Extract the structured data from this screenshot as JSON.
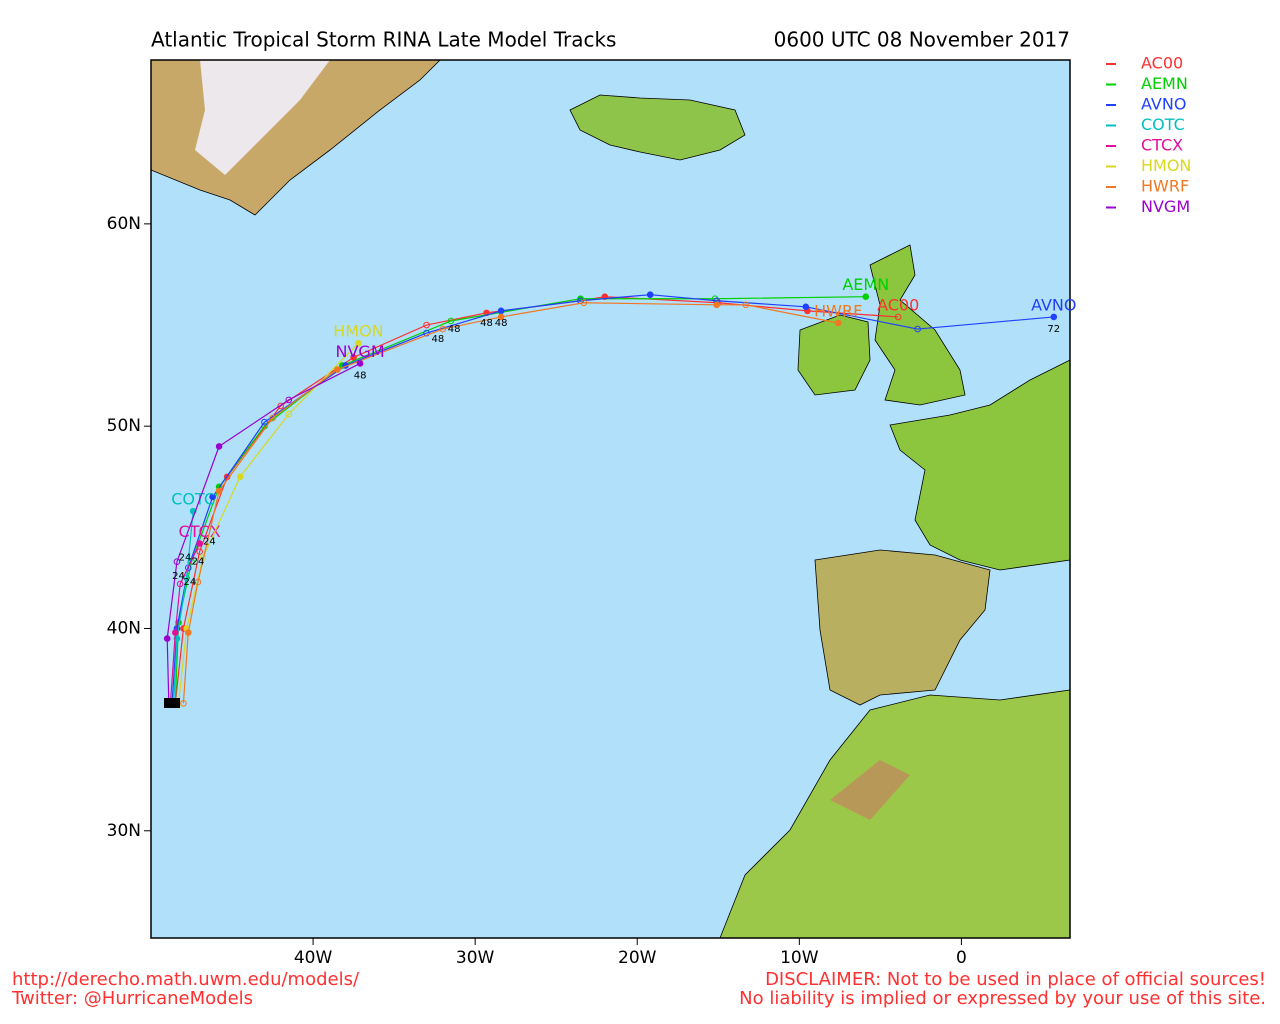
{
  "chart_data": {
    "type": "line",
    "title": "Atlantic Tropical Storm RINA Late Model Tracks",
    "subtitle": "0600 UTC 08 November 2017",
    "xlim": [
      -50,
      6.7
    ],
    "ylim": [
      24.7,
      68.1
    ],
    "xticks": [
      {
        "value": -40,
        "label": "40W"
      },
      {
        "value": -30,
        "label": "30W"
      },
      {
        "value": -20,
        "label": "20W"
      },
      {
        "value": -10,
        "label": "10W"
      },
      {
        "value": 0,
        "label": "0"
      }
    ],
    "yticks": [
      {
        "value": 30,
        "label": "30N"
      },
      {
        "value": 40,
        "label": "40N"
      },
      {
        "value": 50,
        "label": "50N"
      },
      {
        "value": 60,
        "label": "60N"
      }
    ],
    "series": [
      {
        "name": "AC00",
        "color": "#ff3030",
        "x": [
          -48.5,
          -48.0,
          -47.0,
          -45.3,
          -42.0,
          -37.5,
          -33.0,
          -29.3,
          -23.5,
          -22.0,
          -15.0,
          -9.5,
          -3.9
        ],
        "y": [
          36.3,
          40.0,
          43.8,
          47.5,
          51.0,
          53.4,
          55.0,
          55.6,
          56.2,
          56.4,
          56.1,
          55.7,
          55.4
        ]
      },
      {
        "name": "AEMN",
        "color": "#00d000",
        "x": [
          -48.5,
          -48.3,
          -47.5,
          -45.8,
          -43.0,
          -38.2,
          -31.5,
          -23.5,
          -15.2,
          -5.9
        ],
        "y": [
          36.3,
          40.3,
          43.3,
          47.0,
          50.0,
          53.0,
          55.2,
          56.3,
          56.3,
          56.4
        ]
      },
      {
        "name": "AVNO",
        "color": "#2040ff",
        "x": [
          -48.7,
          -48.4,
          -47.7,
          -46.2,
          -43.0,
          -38.0,
          -33.0,
          -28.4,
          -23.5,
          -19.2,
          -15.1,
          -9.6,
          -2.7,
          5.7
        ],
        "y": [
          36.3,
          40.0,
          43.0,
          46.5,
          50.2,
          53.0,
          54.6,
          55.7,
          56.2,
          56.5,
          56.2,
          55.9,
          54.8,
          55.4
        ]
      },
      {
        "name": "COTC",
        "color": "#00c0c0",
        "x": [
          -48.6,
          -48.4,
          -47.8,
          -47.4
        ],
        "y": [
          36.3,
          39.5,
          42.5,
          45.8
        ]
      },
      {
        "name": "CTCX",
        "color": "#e0109a",
        "x": [
          -48.8,
          -48.5,
          -48.2,
          -47.0
        ],
        "y": [
          36.3,
          39.8,
          42.2,
          44.2
        ]
      },
      {
        "name": "HMON",
        "color": "#d8d820",
        "x": [
          -48.3,
          -47.8,
          -46.8,
          -44.5,
          -41.5,
          -37.2
        ],
        "y": [
          36.3,
          40.0,
          43.5,
          47.5,
          50.6,
          54.1
        ]
      },
      {
        "name": "HWRF",
        "color": "#f07820",
        "x": [
          -48.0,
          -47.7,
          -47.1,
          -45.8,
          -42.5,
          -38.5,
          -32.0,
          -28.4,
          -23.3,
          -15.1,
          -13.3,
          -7.6
        ],
        "y": [
          36.3,
          39.8,
          42.3,
          46.8,
          50.4,
          52.8,
          54.8,
          55.4,
          56.1,
          56.0,
          56.0,
          55.1
        ]
      },
      {
        "name": "NVGM",
        "color": "#9a00d0",
        "x": [
          -48.9,
          -49.0,
          -48.4,
          -45.8,
          -41.5,
          -37.1
        ],
        "y": [
          36.3,
          39.5,
          43.3,
          49.0,
          51.3,
          53.1
        ]
      }
    ],
    "annotations": [
      {
        "text": "72",
        "x": 5.7,
        "y": 54.8
      },
      {
        "text": "48",
        "x": -37.1,
        "y": 52.5
      },
      {
        "text": "48",
        "x": -32.3,
        "y": 54.3
      },
      {
        "text": "48",
        "x": -31.3,
        "y": 54.8
      },
      {
        "text": "48",
        "x": -29.3,
        "y": 55.1
      },
      {
        "text": "48",
        "x": -28.4,
        "y": 55.1
      },
      {
        "text": "24",
        "x": -48.3,
        "y": 42.6
      },
      {
        "text": "24",
        "x": -47.6,
        "y": 42.3
      },
      {
        "text": "24",
        "x": -47.1,
        "y": 43.3
      },
      {
        "text": "24",
        "x": -47.9,
        "y": 43.5
      },
      {
        "text": "24",
        "x": -46.4,
        "y": 44.3
      }
    ]
  },
  "footer": {
    "left": [
      "http://derecho.math.uwm.edu/models/",
      "Twitter: @HurricaneModels"
    ],
    "right": [
      "DISCLAIMER: Not to be used in place of official sources!",
      "No liability is implied or expressed by your use of this site."
    ]
  }
}
